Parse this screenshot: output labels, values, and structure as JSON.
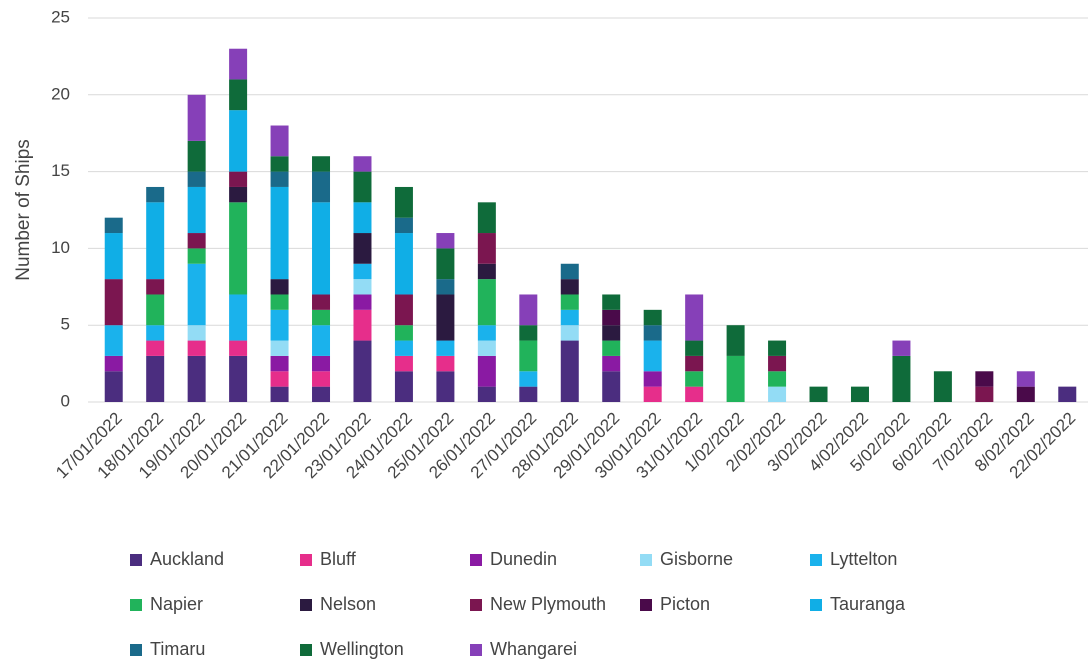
{
  "chart_data": {
    "type": "stacked_bar",
    "y_label": "Number of Ships",
    "categories": [
      "17/01/2022",
      "18/01/2022",
      "19/01/2022",
      "20/01/2022",
      "21/01/2022",
      "22/01/2022",
      "23/01/2022",
      "24/01/2022",
      "25/01/2022",
      "26/01/2022",
      "27/01/2022",
      "28/01/2022",
      "29/01/2022",
      "30/01/2022",
      "31/01/2022",
      "1/02/2022",
      "2/02/2022",
      "3/02/2022",
      "4/02/2022",
      "5/02/2022",
      "6/02/2022",
      "7/02/2022",
      "8/02/2022",
      "22/02/2022"
    ],
    "series": [
      {
        "name": "Auckland",
        "color": "#4b2d7f",
        "values": [
          2,
          3,
          3,
          3,
          1,
          1,
          4,
          2,
          2,
          1,
          1,
          4,
          2,
          0,
          0,
          0,
          0,
          0,
          0,
          0,
          0,
          0,
          0,
          1
        ]
      },
      {
        "name": "Bluff",
        "color": "#e62e8b",
        "values": [
          0,
          1,
          1,
          1,
          1,
          1,
          2,
          1,
          1,
          0,
          0,
          0,
          0,
          1,
          1,
          0,
          0,
          0,
          0,
          0,
          0,
          0,
          0,
          0
        ]
      },
      {
        "name": "Dunedin",
        "color": "#8a1aa3",
        "values": [
          1,
          0,
          0,
          0,
          1,
          1,
          1,
          0,
          0,
          2,
          0,
          0,
          1,
          1,
          0,
          0,
          0,
          0,
          0,
          0,
          0,
          0,
          0,
          0
        ]
      },
      {
        "name": "Gisborne",
        "color": "#93dcf5",
        "values": [
          0,
          0,
          1,
          0,
          1,
          0,
          1,
          0,
          0,
          1,
          0,
          1,
          0,
          0,
          0,
          0,
          1,
          0,
          0,
          0,
          0,
          0,
          0,
          0
        ]
      },
      {
        "name": "Lyttelton",
        "color": "#1ab2ec",
        "values": [
          2,
          1,
          4,
          3,
          2,
          2,
          1,
          1,
          1,
          1,
          1,
          1,
          0,
          2,
          0,
          0,
          0,
          0,
          0,
          0,
          0,
          0,
          0,
          0
        ]
      },
      {
        "name": "Napier",
        "color": "#21b35b",
        "values": [
          0,
          2,
          1,
          6,
          1,
          1,
          0,
          1,
          0,
          3,
          2,
          1,
          1,
          0,
          1,
          3,
          1,
          0,
          0,
          0,
          0,
          0,
          0,
          0
        ]
      },
      {
        "name": "Nelson",
        "color": "#2b1a40",
        "values": [
          0,
          0,
          0,
          1,
          1,
          0,
          2,
          0,
          3,
          1,
          0,
          1,
          1,
          0,
          0,
          0,
          0,
          0,
          0,
          0,
          0,
          0,
          0,
          0
        ]
      },
      {
        "name": "New Plymouth",
        "color": "#7b1650",
        "values": [
          3,
          1,
          1,
          1,
          0,
          1,
          0,
          2,
          0,
          2,
          0,
          0,
          0,
          0,
          1,
          0,
          1,
          0,
          0,
          0,
          0,
          1,
          0,
          0
        ]
      },
      {
        "name": "Picton",
        "color": "#4a0a4a",
        "values": [
          0,
          0,
          0,
          0,
          0,
          0,
          0,
          0,
          0,
          0,
          0,
          0,
          1,
          0,
          0,
          0,
          0,
          0,
          0,
          0,
          0,
          1,
          1,
          0
        ]
      },
      {
        "name": "Tauranga",
        "color": "#10aee6",
        "values": [
          3,
          5,
          3,
          4,
          6,
          6,
          2,
          4,
          0,
          0,
          0,
          0,
          0,
          0,
          0,
          0,
          0,
          0,
          0,
          0,
          0,
          0,
          0,
          0
        ]
      },
      {
        "name": "Timaru",
        "color": "#1a6a8a",
        "values": [
          1,
          1,
          1,
          0,
          1,
          2,
          0,
          1,
          1,
          0,
          0,
          1,
          0,
          1,
          0,
          0,
          0,
          0,
          0,
          0,
          0,
          0,
          0,
          0
        ]
      },
      {
        "name": "Wellington",
        "color": "#0f6b3a",
        "values": [
          0,
          0,
          2,
          2,
          1,
          1,
          2,
          2,
          2,
          2,
          1,
          0,
          1,
          1,
          1,
          2,
          1,
          1,
          1,
          3,
          2,
          0,
          0,
          0
        ]
      },
      {
        "name": "Whangarei",
        "color": "#8640b8",
        "values": [
          0,
          0,
          3,
          2,
          2,
          0,
          1,
          0,
          1,
          0,
          2,
          0,
          0,
          0,
          3,
          0,
          0,
          0,
          0,
          1,
          0,
          0,
          1,
          0
        ]
      }
    ],
    "ylim": [
      0,
      25
    ],
    "yticks": [
      0,
      5,
      10,
      15,
      20,
      25
    ],
    "grid": true
  }
}
